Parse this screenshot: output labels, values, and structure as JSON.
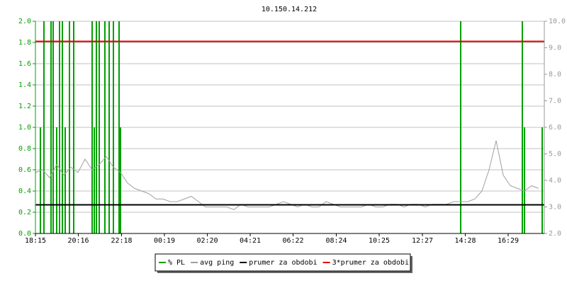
{
  "chart_data": {
    "type": "line",
    "title": "10.150.14.212",
    "xlim": [
      0,
      1436
    ],
    "xticks": [
      {
        "value": 0,
        "label": "18:15"
      },
      {
        "value": 121,
        "label": "20:16"
      },
      {
        "value": 243,
        "label": "22:18"
      },
      {
        "value": 364,
        "label": "00:19"
      },
      {
        "value": 485,
        "label": "02:20"
      },
      {
        "value": 606,
        "label": "04:21"
      },
      {
        "value": 727,
        "label": "06:22"
      },
      {
        "value": 849,
        "label": "08:24"
      },
      {
        "value": 970,
        "label": "10:25"
      },
      {
        "value": 1092,
        "label": "12:27"
      },
      {
        "value": 1213,
        "label": "14:28"
      },
      {
        "value": 1334,
        "label": "16:29"
      }
    ],
    "ylim": [
      0,
      2
    ],
    "yticks": [
      {
        "value": 0,
        "label": "0.0"
      },
      0.2,
      0.4,
      0.6,
      0.8,
      {
        "value": 1,
        "label": "1.0"
      },
      1.2,
      1.4,
      1.6,
      1.8,
      {
        "value": 2,
        "label": "2.0"
      }
    ],
    "y2lim": [
      2,
      10
    ],
    "y2ticks": [
      {
        "value": 2,
        "label": "2.0"
      },
      {
        "value": 3,
        "label": "3.0"
      },
      {
        "value": 4,
        "label": "4.0"
      },
      {
        "value": 5,
        "label": "5.0"
      },
      {
        "value": 6,
        "label": "6.0"
      },
      {
        "value": 7,
        "label": "7.0"
      },
      {
        "value": 8,
        "label": "8.0"
      },
      {
        "value": 9,
        "label": "9.0"
      },
      {
        "value": 10,
        "label": "10.0"
      }
    ],
    "grid": true,
    "series": [
      {
        "name": "% PL",
        "color": "#00a000",
        "style": "impulse",
        "x": [
          14,
          24,
          44,
          50,
          60,
          68,
          76,
          84,
          96,
          108,
          160,
          166,
          172,
          180,
          196,
          208,
          220,
          236,
          240,
          1200,
          1374,
          1380,
          1430
        ],
        "values": [
          1,
          2,
          2,
          2,
          1,
          2,
          2,
          1,
          2,
          2,
          2,
          1,
          2,
          2,
          2,
          2,
          2,
          2,
          1,
          2,
          2,
          1,
          1
        ]
      },
      {
        "name": "avg ping",
        "color": "#a0a0a0",
        "style": "line",
        "axis": "y2",
        "x": [
          0,
          20,
          40,
          60,
          80,
          100,
          120,
          140,
          160,
          180,
          200,
          220,
          240,
          260,
          280,
          300,
          320,
          340,
          360,
          380,
          400,
          420,
          440,
          460,
          480,
          500,
          520,
          540,
          560,
          580,
          600,
          620,
          640,
          660,
          680,
          700,
          720,
          740,
          760,
          780,
          800,
          820,
          840,
          860,
          880,
          900,
          920,
          940,
          960,
          980,
          1000,
          1020,
          1040,
          1060,
          1080,
          1100,
          1120,
          1140,
          1160,
          1180,
          1200,
          1220,
          1240,
          1260,
          1280,
          1300,
          1320,
          1340,
          1360,
          1380,
          1400,
          1420
        ],
        "values": [
          4.3,
          4.4,
          4.1,
          4.6,
          4.2,
          4.5,
          4.3,
          4.8,
          4.4,
          4.6,
          4.9,
          4.5,
          4.3,
          3.9,
          3.7,
          3.6,
          3.5,
          3.3,
          3.3,
          3.2,
          3.2,
          3.3,
          3.4,
          3.2,
          3.0,
          3.0,
          3.0,
          3.0,
          2.9,
          3.1,
          3.0,
          3.0,
          3.0,
          3.0,
          3.1,
          3.2,
          3.1,
          3.0,
          3.1,
          3.0,
          3.0,
          3.2,
          3.1,
          3.0,
          3.0,
          3.0,
          3.0,
          3.1,
          3.0,
          3.0,
          3.1,
          3.1,
          3.0,
          3.1,
          3.1,
          3.0,
          3.1,
          3.1,
          3.1,
          3.2,
          3.2,
          3.2,
          3.3,
          3.6,
          4.4,
          5.5,
          4.2,
          3.8,
          3.7,
          3.6,
          3.8,
          3.7
        ]
      },
      {
        "name": "prumer za obdobi",
        "color": "#000000",
        "style": "hline",
        "axis": "y2",
        "value": 3.08
      },
      {
        "name": "3*prumer za obdobi",
        "color": "#e00000",
        "style": "hline",
        "axis": "y2",
        "value": 9.24
      }
    ]
  }
}
